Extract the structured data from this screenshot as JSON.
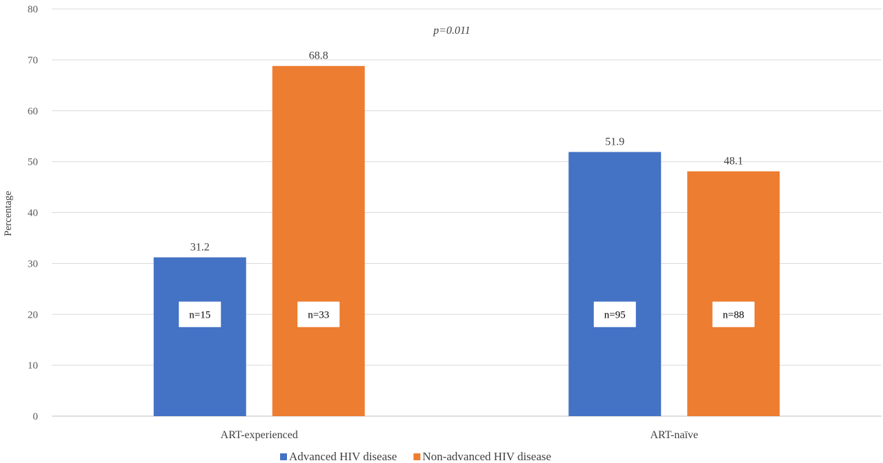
{
  "chart_data": {
    "type": "bar",
    "ylabel": "Percentage",
    "ylim": [
      0,
      80
    ],
    "yticks": [
      0,
      10,
      20,
      30,
      40,
      50,
      60,
      70,
      80
    ],
    "grid": true,
    "legend_position": "bottom",
    "categories": [
      "ART-experienced",
      "ART-naïve"
    ],
    "series": [
      {
        "name": "Advanced HIV disease",
        "color": "#4472C4",
        "values": [
          31.2,
          51.9
        ],
        "n_labels": [
          "n=15",
          "n=95"
        ]
      },
      {
        "name": "Non-advanced HIV disease",
        "color": "#ED7D31",
        "values": [
          68.8,
          48.1
        ],
        "n_labels": [
          "n=33",
          "n=88"
        ]
      }
    ],
    "annotation": "p=0.011"
  }
}
